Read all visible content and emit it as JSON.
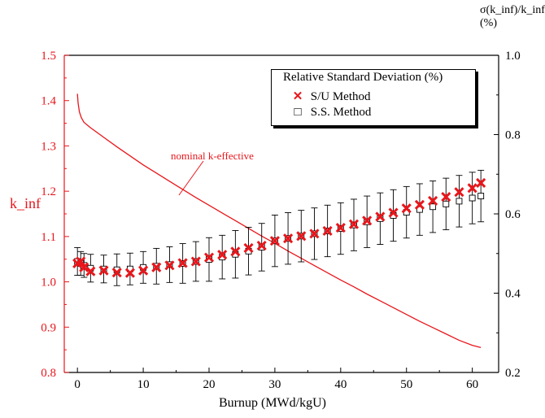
{
  "chart_data": {
    "type": "scatter",
    "title": "",
    "xlabel": "Burnup (MWd/kgU)",
    "ylabel_left": "k_inf",
    "ylabel_right": "σ(k_inf)/k_inf (%)",
    "xlim": [
      -2,
      64
    ],
    "ylim_left": [
      0.8,
      1.5
    ],
    "ylim_right": [
      0.2,
      1.0
    ],
    "x_ticks": [
      "0",
      "10",
      "20",
      "30",
      "40",
      "50",
      "60"
    ],
    "y_ticks_left": [
      "0.8",
      "0.9",
      "1.0",
      "1.1",
      "1.2",
      "1.3",
      "1.4",
      "1.5"
    ],
    "y_ticks_right": [
      "0.2",
      "0.4",
      "0.6",
      "0.8",
      "1.0"
    ],
    "legend_title": "Relative Standard Deviation (%)",
    "legend_position": "top-right",
    "colors": {
      "red": "#e8161b",
      "black": "#000000"
    },
    "series": [
      {
        "name": "S/U Method",
        "axis": "right",
        "marker": "x",
        "color": "#e8161b",
        "x": [
          0,
          0.5,
          1,
          2,
          4,
          6,
          8,
          10,
          12,
          14,
          16,
          18,
          20,
          22,
          24,
          26,
          28,
          30,
          32,
          34,
          36,
          38,
          40,
          42,
          44,
          46,
          48,
          50,
          52,
          54,
          56,
          58,
          60,
          61.3
        ],
        "y": [
          0.475,
          0.48,
          0.465,
          0.455,
          0.457,
          0.452,
          0.451,
          0.457,
          0.465,
          0.47,
          0.476,
          0.48,
          0.49,
          0.497,
          0.505,
          0.514,
          0.52,
          0.532,
          0.538,
          0.544,
          0.55,
          0.557,
          0.565,
          0.574,
          0.583,
          0.593,
          0.603,
          0.614,
          0.623,
          0.633,
          0.643,
          0.655,
          0.665,
          0.678
        ]
      },
      {
        "name": "S.S. Method",
        "axis": "right",
        "marker": "square",
        "color": "#000000",
        "x": [
          0,
          0.5,
          1,
          2,
          4,
          6,
          8,
          10,
          12,
          14,
          16,
          18,
          20,
          22,
          24,
          26,
          28,
          30,
          32,
          34,
          36,
          38,
          40,
          42,
          44,
          46,
          48,
          50,
          52,
          54,
          56,
          58,
          60,
          61.3
        ],
        "y": [
          0.48,
          0.475,
          0.47,
          0.463,
          0.461,
          0.459,
          0.461,
          0.465,
          0.468,
          0.472,
          0.475,
          0.48,
          0.485,
          0.491,
          0.498,
          0.506,
          0.516,
          0.532,
          0.538,
          0.544,
          0.55,
          0.557,
          0.563,
          0.572,
          0.58,
          0.588,
          0.596,
          0.604,
          0.611,
          0.618,
          0.625,
          0.632,
          0.64,
          0.645
        ],
        "yerr": [
          0.035,
          0.03,
          0.03,
          0.035,
          0.035,
          0.04,
          0.04,
          0.04,
          0.045,
          0.045,
          0.05,
          0.05,
          0.055,
          0.055,
          0.06,
          0.06,
          0.06,
          0.065,
          0.065,
          0.065,
          0.065,
          0.065,
          0.065,
          0.065,
          0.065,
          0.065,
          0.065,
          0.065,
          0.065,
          0.065,
          0.065,
          0.065,
          0.065,
          0.065
        ]
      },
      {
        "name": "nominal k-effective",
        "axis": "left",
        "type": "line",
        "color": "#e8161b",
        "x": [
          0,
          0.1,
          0.3,
          0.6,
          1,
          2,
          4,
          6,
          8,
          10,
          12,
          14,
          16,
          18,
          20,
          22,
          24,
          26,
          28,
          30,
          32,
          34,
          36,
          38,
          40,
          42,
          44,
          46,
          48,
          50,
          52,
          54,
          56,
          58,
          60,
          61.3
        ],
        "y": [
          1.415,
          1.395,
          1.375,
          1.362,
          1.352,
          1.34,
          1.319,
          1.298,
          1.278,
          1.258,
          1.24,
          1.222,
          1.204,
          1.186,
          1.169,
          1.152,
          1.135,
          1.118,
          1.101,
          1.085,
          1.068,
          1.052,
          1.036,
          1.02,
          1.004,
          0.989,
          0.973,
          0.958,
          0.943,
          0.928,
          0.913,
          0.899,
          0.885,
          0.871,
          0.86,
          0.855
        ]
      }
    ],
    "annotations": [
      {
        "text": "nominal k-effective",
        "color": "#e8161b"
      }
    ]
  }
}
